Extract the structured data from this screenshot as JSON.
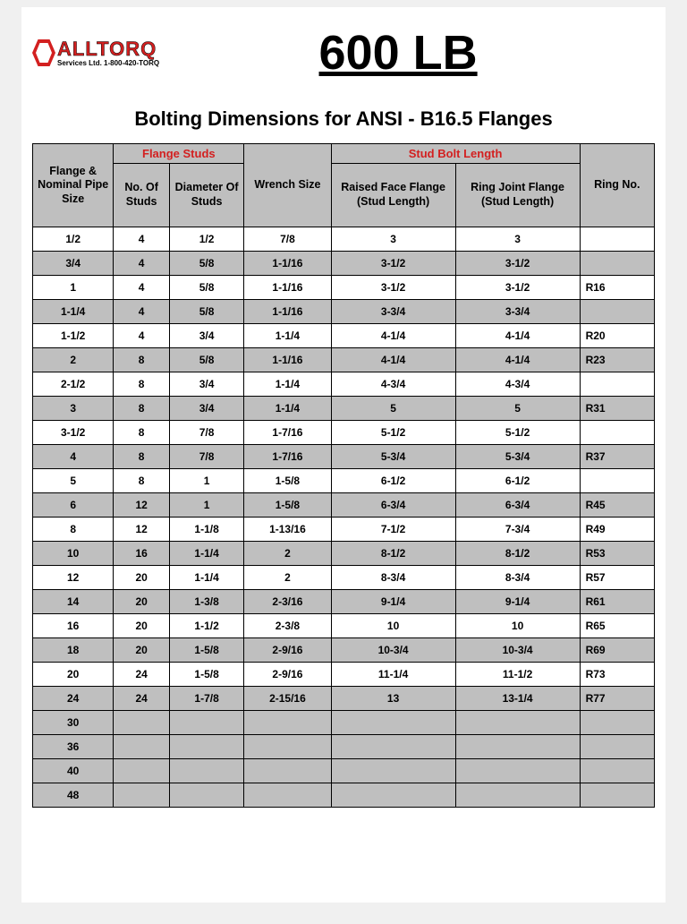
{
  "logo": {
    "brand": "ALLTORQ",
    "subline": "Services Ltd. 1-800-420-TORQ"
  },
  "title": "600 LB",
  "subtitle": "Bolting Dimensions for ANSI - B16.5 Flanges",
  "colors": {
    "accent_red": "#d32020",
    "header_fill": "#bfbfbf",
    "row_shade": "#bfbfbf",
    "row_plain": "#ffffff",
    "border": "#000000"
  },
  "table": {
    "group_headers": {
      "flange_studs": "Flange Studs",
      "stud_bolt_length": "Stud Bolt Length"
    },
    "columns": [
      "Flange & Nominal Pipe Size",
      "No. Of Studs",
      "Diameter Of Studs",
      "Wrench Size",
      "Raised Face Flange (Stud Length)",
      "Ring Joint Flange (Stud Length)",
      "Ring No."
    ],
    "rows": [
      {
        "shaded": false,
        "cells": [
          "1/2",
          "4",
          "1/2",
          "7/8",
          "3",
          "3",
          ""
        ]
      },
      {
        "shaded": true,
        "cells": [
          "3/4",
          "4",
          "5/8",
          "1-1/16",
          "3-1/2",
          "3-1/2",
          ""
        ]
      },
      {
        "shaded": false,
        "cells": [
          "1",
          "4",
          "5/8",
          "1-1/16",
          "3-1/2",
          "3-1/2",
          "R16"
        ]
      },
      {
        "shaded": true,
        "cells": [
          "1-1/4",
          "4",
          "5/8",
          "1-1/16",
          "3-3/4",
          "3-3/4",
          ""
        ]
      },
      {
        "shaded": false,
        "cells": [
          "1-1/2",
          "4",
          "3/4",
          "1-1/4",
          "4-1/4",
          "4-1/4",
          "R20"
        ]
      },
      {
        "shaded": true,
        "cells": [
          "2",
          "8",
          "5/8",
          "1-1/16",
          "4-1/4",
          "4-1/4",
          "R23"
        ]
      },
      {
        "shaded": false,
        "cells": [
          "2-1/2",
          "8",
          "3/4",
          "1-1/4",
          "4-3/4",
          "4-3/4",
          ""
        ]
      },
      {
        "shaded": true,
        "cells": [
          "3",
          "8",
          "3/4",
          "1-1/4",
          "5",
          "5",
          "R31"
        ]
      },
      {
        "shaded": false,
        "cells": [
          "3-1/2",
          "8",
          "7/8",
          "1-7/16",
          "5-1/2",
          "5-1/2",
          ""
        ]
      },
      {
        "shaded": true,
        "cells": [
          "4",
          "8",
          "7/8",
          "1-7/16",
          "5-3/4",
          "5-3/4",
          "R37"
        ]
      },
      {
        "shaded": false,
        "cells": [
          "5",
          "8",
          "1",
          "1-5/8",
          "6-1/2",
          "6-1/2",
          ""
        ]
      },
      {
        "shaded": true,
        "cells": [
          "6",
          "12",
          "1",
          "1-5/8",
          "6-3/4",
          "6-3/4",
          "R45"
        ]
      },
      {
        "shaded": false,
        "cells": [
          "8",
          "12",
          "1-1/8",
          "1-13/16",
          "7-1/2",
          "7-3/4",
          "R49"
        ]
      },
      {
        "shaded": true,
        "cells": [
          "10",
          "16",
          "1-1/4",
          "2",
          "8-1/2",
          "8-1/2",
          "R53"
        ]
      },
      {
        "shaded": false,
        "cells": [
          "12",
          "20",
          "1-1/4",
          "2",
          "8-3/4",
          "8-3/4",
          "R57"
        ]
      },
      {
        "shaded": true,
        "cells": [
          "14",
          "20",
          "1-3/8",
          "2-3/16",
          "9-1/4",
          "9-1/4",
          "R61"
        ]
      },
      {
        "shaded": false,
        "cells": [
          "16",
          "20",
          "1-1/2",
          "2-3/8",
          "10",
          "10",
          "R65"
        ]
      },
      {
        "shaded": true,
        "cells": [
          "18",
          "20",
          "1-5/8",
          "2-9/16",
          "10-3/4",
          "10-3/4",
          "R69"
        ]
      },
      {
        "shaded": false,
        "cells": [
          "20",
          "24",
          "1-5/8",
          "2-9/16",
          "11-1/4",
          "11-1/2",
          "R73"
        ]
      },
      {
        "shaded": true,
        "cells": [
          "24",
          "24",
          "1-7/8",
          "2-15/16",
          "13",
          "13-1/4",
          "R77"
        ]
      },
      {
        "shaded": true,
        "cells": [
          "30",
          "",
          "",
          "",
          "",
          "",
          ""
        ]
      },
      {
        "shaded": true,
        "cells": [
          "36",
          "",
          "",
          "",
          "",
          "",
          ""
        ]
      },
      {
        "shaded": true,
        "cells": [
          "40",
          "",
          "",
          "",
          "",
          "",
          ""
        ]
      },
      {
        "shaded": true,
        "cells": [
          "48",
          "",
          "",
          "",
          "",
          "",
          ""
        ]
      }
    ]
  }
}
